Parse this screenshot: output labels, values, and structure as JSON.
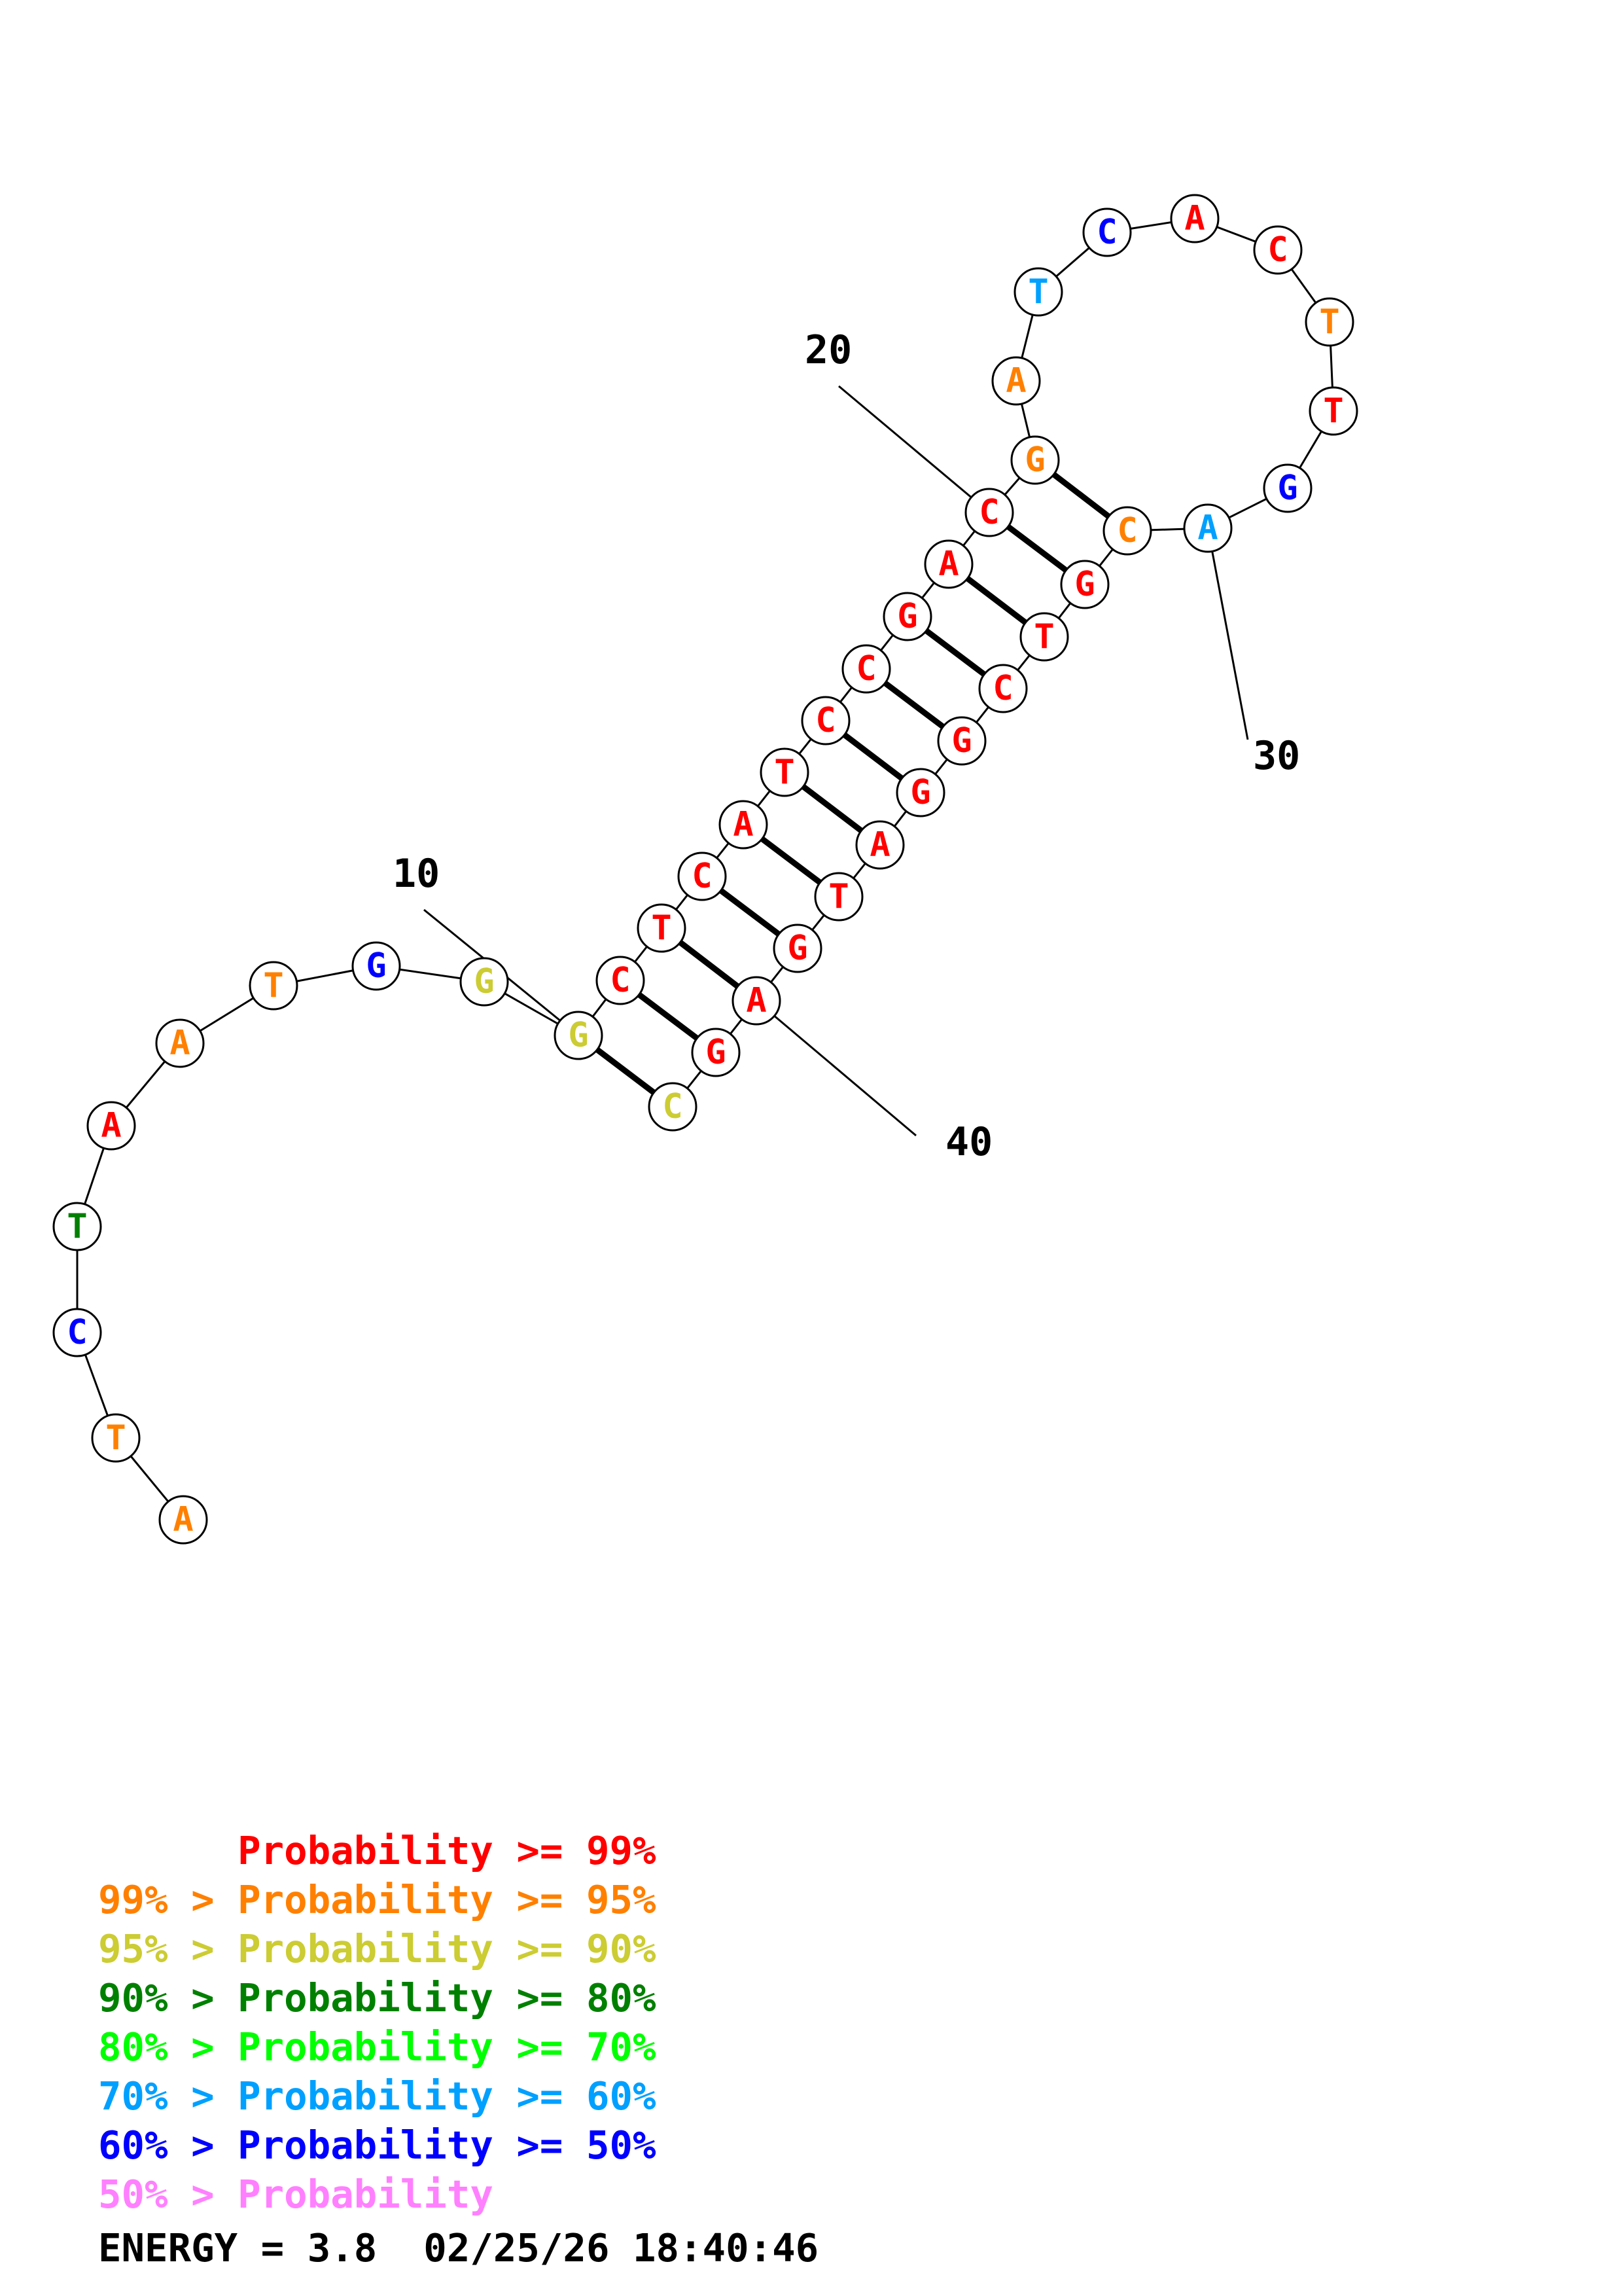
{
  "colors": {
    "p99": "#ff0000",
    "p95": "#ff8000",
    "p90": "#cccc33",
    "p80": "#008000",
    "p70": "#00ff00",
    "p60": "#00a0ff",
    "p50": "#0000ff",
    "plow": "#ff80ff"
  },
  "nucleotides": [
    {
      "n": 1,
      "base": "A",
      "color": "p95"
    },
    {
      "n": 2,
      "base": "T",
      "color": "p95"
    },
    {
      "n": 3,
      "base": "C",
      "color": "p50"
    },
    {
      "n": 4,
      "base": "T",
      "color": "p80"
    },
    {
      "n": 5,
      "base": "A",
      "color": "p99"
    },
    {
      "n": 6,
      "base": "A",
      "color": "p95"
    },
    {
      "n": 7,
      "base": "T",
      "color": "p95"
    },
    {
      "n": 8,
      "base": "G",
      "color": "p50"
    },
    {
      "n": 9,
      "base": "G",
      "color": "p90"
    },
    {
      "n": 10,
      "base": "G",
      "color": "p90"
    },
    {
      "n": 11,
      "base": "C",
      "color": "p99"
    },
    {
      "n": 12,
      "base": "T",
      "color": "p99"
    },
    {
      "n": 13,
      "base": "C",
      "color": "p99"
    },
    {
      "n": 14,
      "base": "A",
      "color": "p99"
    },
    {
      "n": 15,
      "base": "T",
      "color": "p99"
    },
    {
      "n": 16,
      "base": "C",
      "color": "p99"
    },
    {
      "n": 17,
      "base": "C",
      "color": "p99"
    },
    {
      "n": 18,
      "base": "G",
      "color": "p99"
    },
    {
      "n": 19,
      "base": "A",
      "color": "p99"
    },
    {
      "n": 20,
      "base": "C",
      "color": "p99"
    },
    {
      "n": 21,
      "base": "G",
      "color": "p95"
    },
    {
      "n": 22,
      "base": "A",
      "color": "p95"
    },
    {
      "n": 23,
      "base": "T",
      "color": "p60"
    },
    {
      "n": 24,
      "base": "C",
      "color": "p50"
    },
    {
      "n": 25,
      "base": "A",
      "color": "p99"
    },
    {
      "n": 26,
      "base": "C",
      "color": "p99"
    },
    {
      "n": 27,
      "base": "T",
      "color": "p95"
    },
    {
      "n": 28,
      "base": "T",
      "color": "p99"
    },
    {
      "n": 29,
      "base": "G",
      "color": "p50"
    },
    {
      "n": 30,
      "base": "A",
      "color": "p60"
    },
    {
      "n": 31,
      "base": "C",
      "color": "p95"
    },
    {
      "n": 32,
      "base": "G",
      "color": "p99"
    },
    {
      "n": 33,
      "base": "T",
      "color": "p99"
    },
    {
      "n": 34,
      "base": "C",
      "color": "p99"
    },
    {
      "n": 35,
      "base": "G",
      "color": "p99"
    },
    {
      "n": 36,
      "base": "G",
      "color": "p99"
    },
    {
      "n": 37,
      "base": "A",
      "color": "p99"
    },
    {
      "n": 38,
      "base": "T",
      "color": "p99"
    },
    {
      "n": 39,
      "base": "G",
      "color": "p99"
    },
    {
      "n": 40,
      "base": "A",
      "color": "p99"
    },
    {
      "n": 41,
      "base": "G",
      "color": "p99"
    },
    {
      "n": 42,
      "base": "C",
      "color": "p90"
    }
  ],
  "pairs": [
    [
      10,
      42
    ],
    [
      11,
      41
    ],
    [
      12,
      40
    ],
    [
      13,
      39
    ],
    [
      14,
      38
    ],
    [
      15,
      37
    ],
    [
      16,
      36
    ],
    [
      17,
      35
    ],
    [
      18,
      34
    ],
    [
      19,
      33
    ],
    [
      20,
      32
    ],
    [
      21,
      31
    ]
  ],
  "position_labels": [
    {
      "text": "10",
      "target": 10
    },
    {
      "text": "20",
      "target": 20
    },
    {
      "text": "30",
      "target": 30
    },
    {
      "text": "40",
      "target": 40
    }
  ],
  "legend": [
    {
      "text": "      Probability >= 99%",
      "color": "p99"
    },
    {
      "text": "99% > Probability >= 95%",
      "color": "p95"
    },
    {
      "text": "95% > Probability >= 90%",
      "color": "p90"
    },
    {
      "text": "90% > Probability >= 80%",
      "color": "p80"
    },
    {
      "text": "80% > Probability >= 70%",
      "color": "p70"
    },
    {
      "text": "70% > Probability >= 60%",
      "color": "p60"
    },
    {
      "text": "60% > Probability >= 50%",
      "color": "p50"
    },
    {
      "text": "50% > Probability",
      "color": "plow"
    }
  ],
  "energy_text": "ENERGY = 3.8  02/25/26 18:40:46"
}
